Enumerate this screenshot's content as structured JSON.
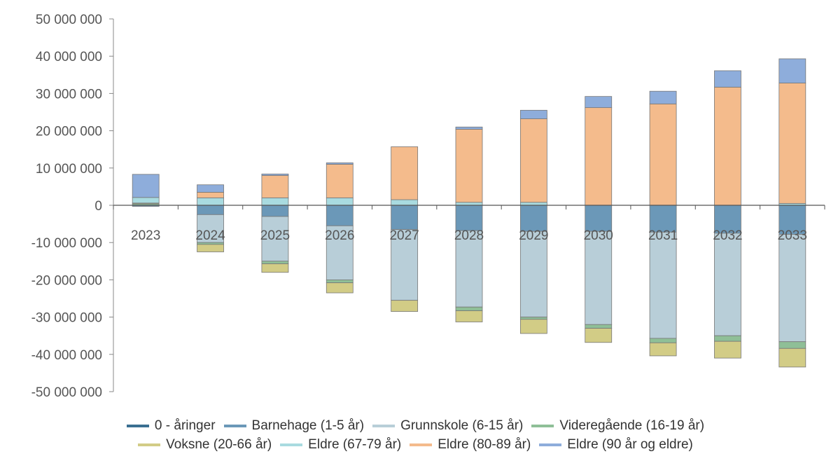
{
  "chart_data": {
    "type": "bar",
    "stacked": true,
    "categories": [
      "2023",
      "2024",
      "2025",
      "2026",
      "2027",
      "2028",
      "2029",
      "2030",
      "2031",
      "2032",
      "2033"
    ],
    "ylim": [
      -50000000,
      50000000
    ],
    "yticks": [
      50000000,
      40000000,
      30000000,
      20000000,
      10000000,
      0,
      -10000000,
      -20000000,
      -30000000,
      -40000000,
      -50000000
    ],
    "ytick_labels": [
      "50 000 000",
      "40 000 000",
      "30 000 000",
      "20 000 000",
      "10 000 000",
      "0",
      "-10 000 000",
      "-20 000 000",
      "-30 000 000",
      "-40 000 000",
      "-50 000 000"
    ],
    "grid": false,
    "legend_position": "bottom",
    "series": [
      {
        "name": "0 - åringer",
        "color": "#3a6f91",
        "values": [
          0,
          0,
          0,
          0,
          0,
          0,
          0,
          0,
          0,
          0,
          0
        ]
      },
      {
        "name": "Barnehage (1-5 år)",
        "color": "#6b98b8",
        "values": [
          -300000,
          -2500000,
          -3000000,
          -5500000,
          -6500000,
          -6800000,
          -7000000,
          -7000000,
          -7200000,
          -7500000,
          -7800000
        ]
      },
      {
        "name": "Grunnskole (6-15 år)",
        "color": "#b8ced8",
        "values": [
          0,
          -7500000,
          -12000000,
          -14500000,
          -19000000,
          -20500000,
          -23000000,
          -25000000,
          -28500000,
          -27500000,
          -28800000
        ]
      },
      {
        "name": "Videregående (16-19 år)",
        "color": "#8fbf97",
        "values": [
          400000,
          -500000,
          -700000,
          -800000,
          0,
          -1000000,
          -600000,
          -1000000,
          -1200000,
          -1500000,
          -1800000
        ]
      },
      {
        "name": "Voksne (20-66 år)",
        "color": "#d2cc86",
        "values": [
          200000,
          -2000000,
          -2300000,
          -2700000,
          -3000000,
          -3000000,
          -3800000,
          -3800000,
          -3500000,
          -4500000,
          -5000000
        ]
      },
      {
        "name": "Eldre (67-79 år)",
        "color": "#a9dbe0",
        "values": [
          1500000,
          2000000,
          2000000,
          2000000,
          1500000,
          800000,
          800000,
          0,
          0,
          0,
          500000
        ]
      },
      {
        "name": "Eldre (80-89 år)",
        "color": "#f4bb8c",
        "values": [
          0,
          1500000,
          6000000,
          9000000,
          14200000,
          19600000,
          22400000,
          26200000,
          27200000,
          31700000,
          32300000
        ]
      },
      {
        "name": "Eldre (90 år og eldre)",
        "color": "#8eaddb",
        "values": [
          6200000,
          2000000,
          400000,
          400000,
          0,
          600000,
          2300000,
          3000000,
          3400000,
          4400000,
          6500000
        ]
      }
    ]
  }
}
